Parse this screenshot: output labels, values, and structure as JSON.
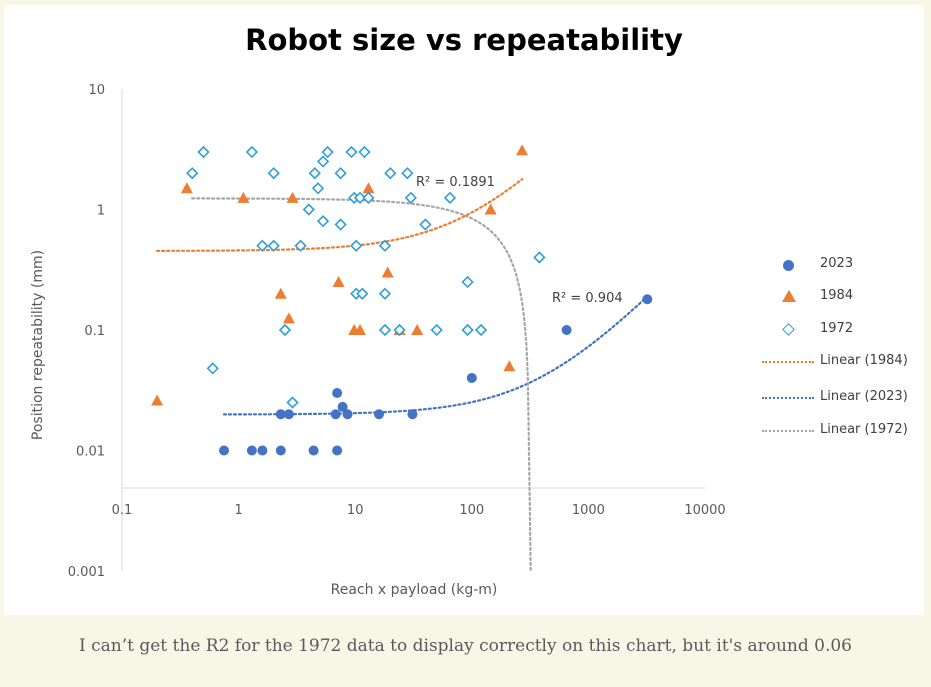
{
  "chart_data": {
    "type": "scatter",
    "title": "Robot size vs repeatability",
    "xlabel": "Reach x payload (kg-m)",
    "ylabel": "Position repeatability (mm)",
    "x_scale": "log",
    "y_scale": "log",
    "xlim": [
      0.1,
      10000
    ],
    "ylim": [
      0.001,
      10
    ],
    "x_ticks": [
      "0.1",
      "1",
      "10",
      "100",
      "1000",
      "10000"
    ],
    "y_ticks": [
      "0.001",
      "0.01",
      "0.1",
      "1",
      "10"
    ],
    "grid": false,
    "legend_position": "right",
    "series": [
      {
        "name": "2023",
        "marker": "circle",
        "color": "#4472c4",
        "points": [
          [
            0.75,
            0.01
          ],
          [
            1.3,
            0.01
          ],
          [
            1.6,
            0.01
          ],
          [
            2.3,
            0.01
          ],
          [
            4.4,
            0.01
          ],
          [
            7.0,
            0.01
          ],
          [
            2.3,
            0.02
          ],
          [
            2.7,
            0.02
          ],
          [
            6.8,
            0.02
          ],
          [
            7.8,
            0.023
          ],
          [
            8.6,
            0.02
          ],
          [
            7.0,
            0.03
          ],
          [
            16,
            0.02
          ],
          [
            31,
            0.02
          ],
          [
            100,
            0.04
          ],
          [
            650,
            0.1
          ],
          [
            3200,
            0.18
          ]
        ]
      },
      {
        "name": "1984",
        "marker": "triangle",
        "color": "#ed7d31",
        "points": [
          [
            0.2,
            0.026
          ],
          [
            0.36,
            1.5
          ],
          [
            1.1,
            1.25
          ],
          [
            2.3,
            0.2
          ],
          [
            2.7,
            0.125
          ],
          [
            2.9,
            1.25
          ],
          [
            7.2,
            0.25
          ],
          [
            9.8,
            0.1
          ],
          [
            11,
            0.1
          ],
          [
            13,
            1.5
          ],
          [
            19,
            0.3
          ],
          [
            24,
            0.1
          ],
          [
            34,
            0.1
          ],
          [
            145,
            1.0
          ],
          [
            210,
            0.05
          ],
          [
            270,
            3.1
          ]
        ]
      },
      {
        "name": "1972",
        "marker": "diamond",
        "color": "#2e9fd6",
        "points": [
          [
            0.4,
            2.0
          ],
          [
            0.5,
            3.0
          ],
          [
            0.6,
            0.048
          ],
          [
            1.3,
            3.0
          ],
          [
            1.6,
            0.5
          ],
          [
            2.0,
            2.0
          ],
          [
            2.0,
            0.5
          ],
          [
            2.5,
            0.1
          ],
          [
            2.9,
            0.025
          ],
          [
            3.4,
            0.5
          ],
          [
            4.0,
            1.0
          ],
          [
            4.5,
            2.0
          ],
          [
            4.8,
            1.5
          ],
          [
            5.3,
            0.8
          ],
          [
            5.3,
            2.5
          ],
          [
            5.8,
            3.0
          ],
          [
            7.5,
            2.0
          ],
          [
            7.5,
            0.75
          ],
          [
            9.3,
            3.0
          ],
          [
            9.8,
            1.25
          ],
          [
            10.2,
            0.5
          ],
          [
            10.2,
            0.2
          ],
          [
            11,
            1.25
          ],
          [
            11.5,
            0.2
          ],
          [
            12,
            3.0
          ],
          [
            13,
            1.25
          ],
          [
            18,
            0.5
          ],
          [
            18,
            0.2
          ],
          [
            18,
            0.1
          ],
          [
            20,
            2.0
          ],
          [
            24,
            0.1
          ],
          [
            28,
            2.0
          ],
          [
            30,
            1.25
          ],
          [
            40,
            0.75
          ],
          [
            50,
            0.1
          ],
          [
            65,
            1.25
          ],
          [
            92,
            0.25
          ],
          [
            92,
            0.1
          ],
          [
            120,
            0.1
          ],
          [
            380,
            0.4
          ]
        ]
      }
    ],
    "trendlines": [
      {
        "name": "Linear (1984)",
        "series": "1984",
        "type": "linear",
        "color": "#ed7d31",
        "r_squared_label": "R² = 0.1891"
      },
      {
        "name": "Linear (2023)",
        "series": "2023",
        "type": "linear",
        "color": "#4472c4",
        "r_squared_label": "R² = 0.904"
      },
      {
        "name": "Linear (1972)",
        "series": "1972",
        "type": "linear",
        "color": "#a6a6a6"
      }
    ],
    "legend": [
      "2023",
      "1984",
      "1972",
      "Linear (1984)",
      "Linear (2023)",
      "Linear (1972)"
    ]
  },
  "caption": "I can’t get the R2 for the 1972 data to display correctly on this chart, but it's around 0.06"
}
